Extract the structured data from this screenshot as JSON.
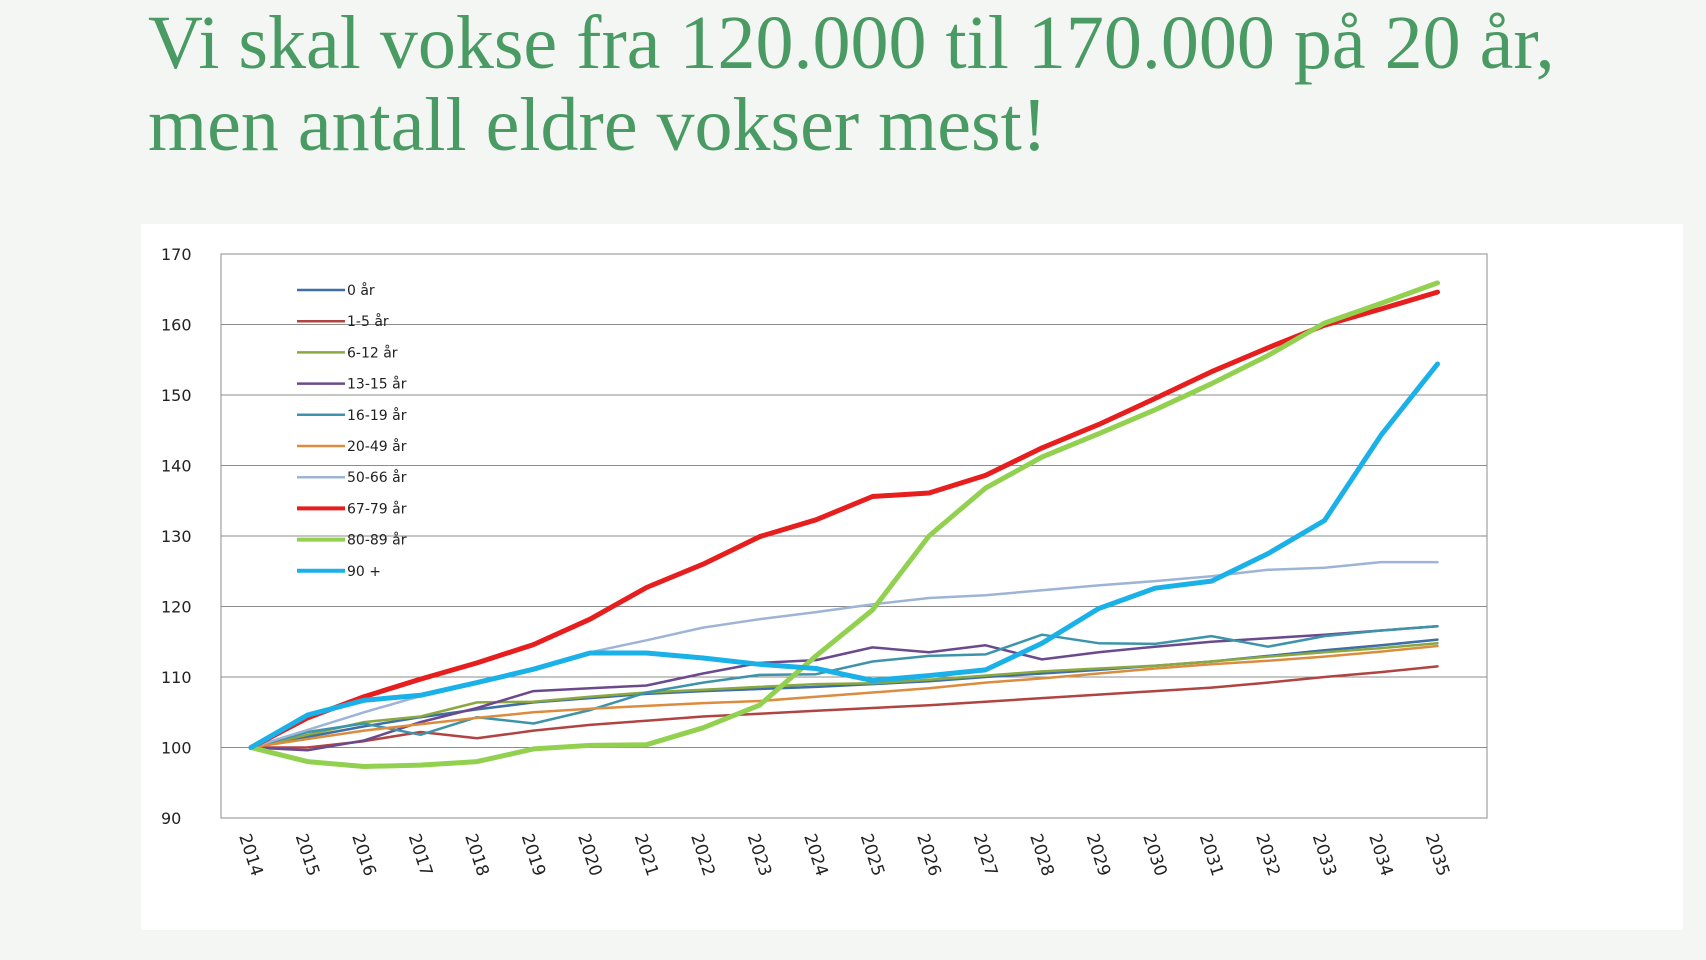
{
  "title": "Vi skal vokse fra 120.000 til 170.000 på 20 år, men antall eldre vokser mest!",
  "chart_data": {
    "type": "line",
    "title": "",
    "xlabel": "",
    "ylabel": "",
    "ylim": [
      90,
      170
    ],
    "yticks": [
      90,
      100,
      110,
      120,
      130,
      140,
      150,
      160,
      170
    ],
    "grid": true,
    "legend_position": "top-left",
    "x": [
      "2014",
      "2015",
      "2016",
      "2017",
      "2018",
      "2019",
      "2020",
      "2021",
      "2022",
      "2023",
      "2024",
      "2025",
      "2026",
      "2027",
      "2028",
      "2029",
      "2030",
      "2031",
      "2032",
      "2033",
      "2034",
      "2035"
    ],
    "series": [
      {
        "name": "0 år",
        "color": "#3d6ea6",
        "width": 2.5,
        "values": [
          100,
          101.5,
          103,
          104.3,
          105.4,
          106.4,
          107,
          107.6,
          108,
          108.3,
          108.6,
          109,
          109.4,
          110,
          110.5,
          111,
          111.6,
          112.2,
          113,
          113.8,
          114.5,
          115.3
        ]
      },
      {
        "name": "1-5 år",
        "color": "#b04442",
        "width": 2.5,
        "values": [
          100,
          100,
          100.9,
          102.2,
          101.3,
          102.4,
          103.2,
          103.8,
          104.4,
          104.8,
          105.2,
          105.6,
          106,
          106.5,
          107,
          107.5,
          108,
          108.5,
          109.2,
          110,
          110.7,
          111.5
        ]
      },
      {
        "name": "6-12 år",
        "color": "#8aa83f",
        "width": 2.5,
        "values": [
          100,
          101.8,
          103.6,
          104.4,
          106.4,
          106.5,
          107.2,
          107.8,
          108.2,
          108.6,
          109,
          109.1,
          109.6,
          110.2,
          110.8,
          111.2,
          111.6,
          112.2,
          112.9,
          113.5,
          114.1,
          114.8
        ]
      },
      {
        "name": "13-15 år",
        "color": "#6a4a8c",
        "width": 2.5,
        "values": [
          100,
          99.6,
          101,
          103.6,
          105.6,
          108,
          108.4,
          108.8,
          110.5,
          112,
          112.4,
          114.2,
          113.5,
          114.5,
          112.5,
          113.5,
          114.3,
          115,
          115.5,
          116,
          116.6,
          117.2
        ]
      },
      {
        "name": "16-19 år",
        "color": "#3d94aa",
        "width": 2.5,
        "values": [
          100,
          102.2,
          103.4,
          101.8,
          104.3,
          103.4,
          105.3,
          107.8,
          109.2,
          110.3,
          110.4,
          112.2,
          113,
          113.2,
          116,
          114.8,
          114.7,
          115.8,
          114.3,
          115.8,
          116.6,
          117.2
        ]
      },
      {
        "name": "20-49 år",
        "color": "#dc8c3e",
        "width": 2.5,
        "values": [
          100,
          101.2,
          102.4,
          103.3,
          104.2,
          105,
          105.5,
          105.9,
          106.3,
          106.6,
          107.2,
          107.8,
          108.4,
          109.2,
          109.8,
          110.5,
          111.2,
          111.8,
          112.3,
          112.9,
          113.6,
          114.4
        ]
      },
      {
        "name": "50-66 år",
        "color": "#9eb4d6",
        "width": 2.5,
        "values": [
          100,
          102.5,
          105,
          107.3,
          109.3,
          111.2,
          113.5,
          115.2,
          117,
          118.2,
          119.2,
          120.3,
          121.2,
          121.6,
          122.3,
          123,
          123.6,
          124.3,
          125.2,
          125.5,
          126.3,
          126.3
        ]
      },
      {
        "name": "67-79 år",
        "color": "#e61e1e",
        "width": 5,
        "values": [
          100,
          104.2,
          107.2,
          109.7,
          112,
          114.6,
          118.2,
          122.7,
          126,
          129.9,
          132.3,
          135.6,
          136.1,
          138.6,
          142.5,
          145.8,
          149.5,
          153.3,
          156.7,
          159.9,
          162.2,
          164.6
        ]
      },
      {
        "name": "80-89 år",
        "color": "#92d050",
        "width": 5,
        "values": [
          100,
          98,
          97.3,
          97.5,
          98,
          99.8,
          100.3,
          100.4,
          102.8,
          106,
          113,
          119.5,
          130,
          136.8,
          141.2,
          144.5,
          147.9,
          151.6,
          155.6,
          160.2,
          163,
          165.9
        ]
      },
      {
        "name": "90 +",
        "color": "#1ab0e8",
        "width": 5,
        "values": [
          100,
          104.6,
          106.7,
          107.4,
          109.2,
          111.1,
          113.4,
          113.4,
          112.7,
          111.8,
          111.2,
          109.5,
          110.2,
          111,
          114.8,
          119.7,
          122.6,
          123.6,
          127.5,
          132.2,
          144.3,
          154.4
        ]
      }
    ]
  }
}
